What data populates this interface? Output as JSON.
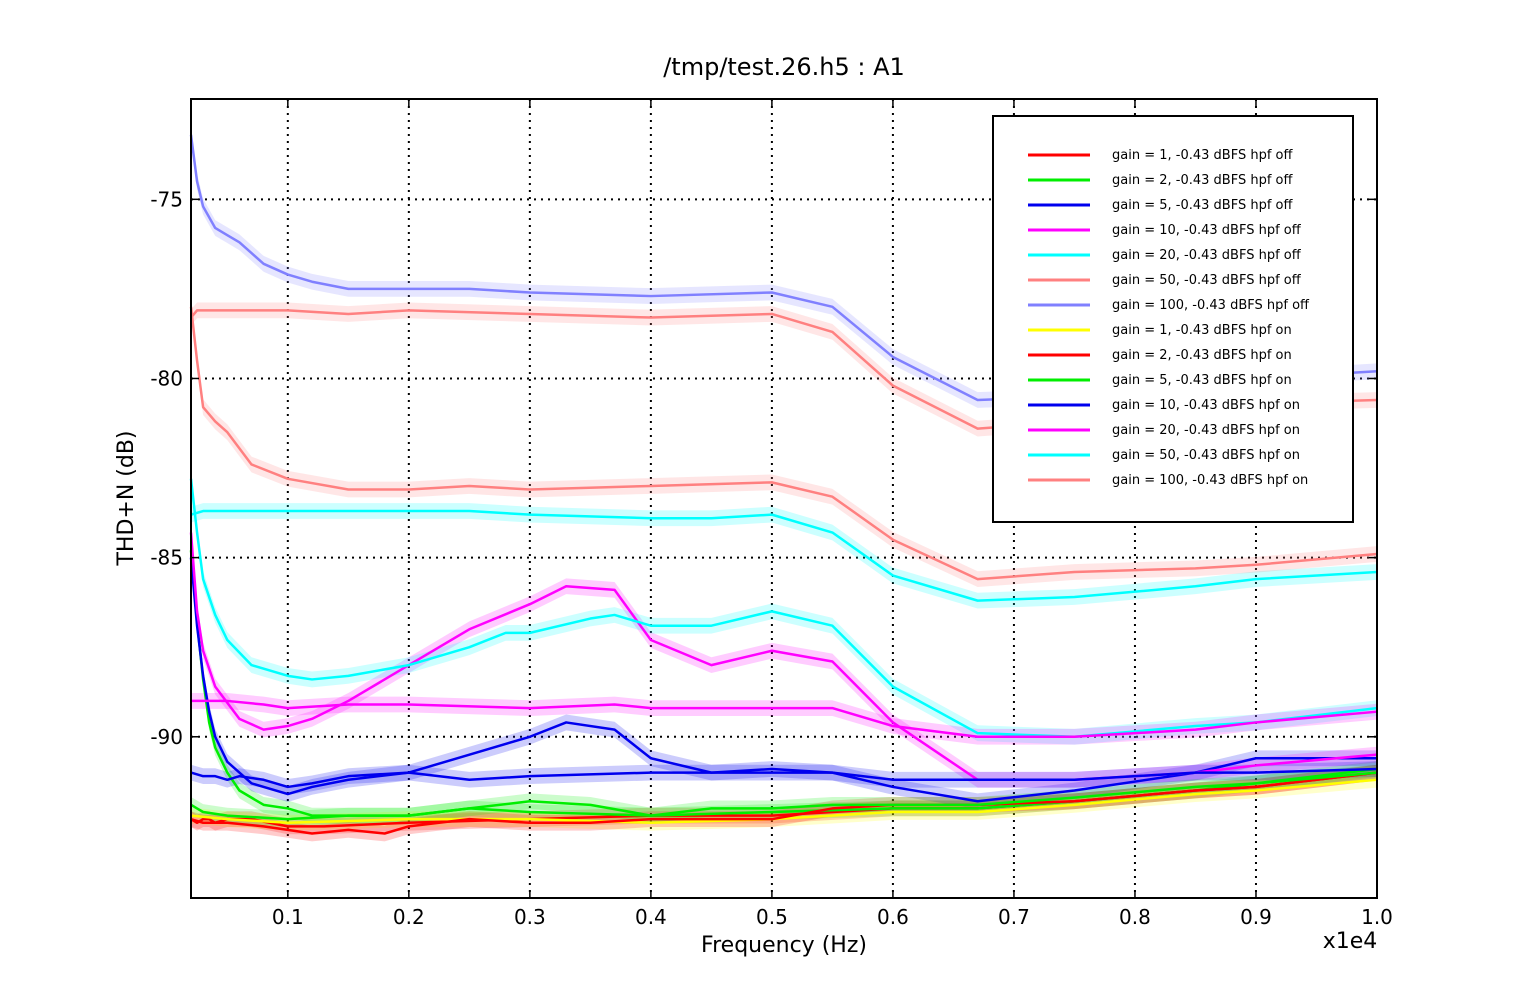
{
  "chart_data": {
    "type": "line",
    "title": "/tmp/test.26.h5 : A1",
    "xlabel": "Frequency (Hz)",
    "ylabel": "THD+N (dB)",
    "x_multiplier_label": "x1e4",
    "xlim": [
      0.02,
      1.0
    ],
    "ylim": [
      -94.5,
      -72.2
    ],
    "grid": "dotted",
    "legend_position": "top-right",
    "xticks": [
      0.1,
      0.2,
      0.3,
      0.4,
      0.5,
      0.6,
      0.7,
      0.8,
      0.9,
      1.0
    ],
    "xtick_labels": [
      "0.1",
      "0.2",
      "0.3",
      "0.4",
      "0.5",
      "0.6",
      "0.7",
      "0.8",
      "0.9",
      "1.0"
    ],
    "yticks": [
      -75,
      -80,
      -85,
      -90
    ],
    "ytick_labels": [
      "-75",
      "-80",
      "-85",
      "-90"
    ],
    "series": [
      {
        "name": "gain = 1, -0.43 dBFS  hpf off",
        "color": "#ff0000",
        "points": [
          [
            0.02,
            -92.3
          ],
          [
            0.025,
            -92.4
          ],
          [
            0.03,
            -92.3
          ],
          [
            0.035,
            -92.3
          ],
          [
            0.04,
            -92.4
          ],
          [
            0.05,
            -92.3
          ],
          [
            0.07,
            -92.3
          ],
          [
            0.1,
            -92.5
          ],
          [
            0.13,
            -92.5
          ],
          [
            0.2,
            -92.4
          ],
          [
            0.3,
            -92.3
          ],
          [
            0.4,
            -92.2
          ],
          [
            0.5,
            -92.2
          ],
          [
            0.6,
            -92.0
          ],
          [
            0.67,
            -92.0
          ],
          [
            0.75,
            -91.8
          ],
          [
            0.85,
            -91.5
          ],
          [
            0.9,
            -91.4
          ],
          [
            1.0,
            -91.0
          ]
        ]
      },
      {
        "name": "gain = 2, -0.43 dBFS  hpf off",
        "color": "#00ee00",
        "points": [
          [
            0.02,
            -84.8
          ],
          [
            0.025,
            -86.8
          ],
          [
            0.03,
            -88.4
          ],
          [
            0.035,
            -89.6
          ],
          [
            0.04,
            -90.3
          ],
          [
            0.05,
            -91.0
          ],
          [
            0.06,
            -91.5
          ],
          [
            0.08,
            -91.9
          ],
          [
            0.1,
            -92.0
          ],
          [
            0.12,
            -92.2
          ],
          [
            0.2,
            -92.2
          ],
          [
            0.25,
            -92.0
          ],
          [
            0.3,
            -92.1
          ],
          [
            0.4,
            -92.2
          ],
          [
            0.5,
            -92.1
          ],
          [
            0.6,
            -92.0
          ],
          [
            0.67,
            -92.0
          ],
          [
            0.75,
            -91.8
          ],
          [
            0.85,
            -91.5
          ],
          [
            0.9,
            -91.3
          ],
          [
            1.0,
            -90.9
          ]
        ]
      },
      {
        "name": "gain = 5, -0.43 dBFS  hpf off",
        "color": "#0000ee",
        "points": [
          [
            0.02,
            -85.0
          ],
          [
            0.025,
            -86.9
          ],
          [
            0.03,
            -88.3
          ],
          [
            0.035,
            -89.3
          ],
          [
            0.04,
            -90.0
          ],
          [
            0.05,
            -90.7
          ],
          [
            0.07,
            -91.3
          ],
          [
            0.1,
            -91.6
          ],
          [
            0.12,
            -91.4
          ],
          [
            0.15,
            -91.2
          ],
          [
            0.2,
            -91.0
          ],
          [
            0.25,
            -90.5
          ],
          [
            0.3,
            -90.0
          ],
          [
            0.33,
            -89.6
          ],
          [
            0.37,
            -89.8
          ],
          [
            0.4,
            -90.6
          ],
          [
            0.45,
            -91.0
          ],
          [
            0.5,
            -90.9
          ],
          [
            0.55,
            -91.0
          ],
          [
            0.6,
            -91.4
          ],
          [
            0.67,
            -91.8
          ],
          [
            0.75,
            -91.5
          ],
          [
            0.85,
            -91.0
          ],
          [
            0.9,
            -90.6
          ],
          [
            1.0,
            -90.6
          ]
        ]
      },
      {
        "name": "gain = 10, -0.43 dBFS  hpf off",
        "color": "#ff00ff",
        "points": [
          [
            0.02,
            -84.3
          ],
          [
            0.025,
            -86.5
          ],
          [
            0.03,
            -87.6
          ],
          [
            0.04,
            -88.6
          ],
          [
            0.06,
            -89.5
          ],
          [
            0.08,
            -89.8
          ],
          [
            0.1,
            -89.7
          ],
          [
            0.12,
            -89.5
          ],
          [
            0.15,
            -89.0
          ],
          [
            0.2,
            -88.0
          ],
          [
            0.25,
            -87.0
          ],
          [
            0.3,
            -86.3
          ],
          [
            0.33,
            -85.8
          ],
          [
            0.37,
            -85.9
          ],
          [
            0.4,
            -87.3
          ],
          [
            0.45,
            -88.0
          ],
          [
            0.5,
            -87.6
          ],
          [
            0.55,
            -87.9
          ],
          [
            0.6,
            -89.6
          ],
          [
            0.67,
            -91.2
          ],
          [
            0.75,
            -91.2
          ],
          [
            0.85,
            -91.0
          ],
          [
            0.9,
            -90.8
          ],
          [
            1.0,
            -90.5
          ]
        ]
      },
      {
        "name": "gain = 20, -0.43 dBFS  hpf off",
        "color": "#00ffff",
        "points": [
          [
            0.02,
            -82.8
          ],
          [
            0.025,
            -84.3
          ],
          [
            0.03,
            -85.6
          ],
          [
            0.04,
            -86.6
          ],
          [
            0.05,
            -87.3
          ],
          [
            0.07,
            -88.0
          ],
          [
            0.1,
            -88.3
          ],
          [
            0.12,
            -88.4
          ],
          [
            0.15,
            -88.3
          ],
          [
            0.2,
            -88.0
          ],
          [
            0.25,
            -87.5
          ],
          [
            0.28,
            -87.1
          ],
          [
            0.3,
            -87.1
          ],
          [
            0.35,
            -86.7
          ],
          [
            0.37,
            -86.6
          ],
          [
            0.4,
            -86.9
          ],
          [
            0.45,
            -86.9
          ],
          [
            0.5,
            -86.5
          ],
          [
            0.55,
            -86.9
          ],
          [
            0.6,
            -88.6
          ],
          [
            0.67,
            -89.9
          ],
          [
            0.75,
            -90.0
          ],
          [
            0.85,
            -89.7
          ],
          [
            0.9,
            -89.6
          ],
          [
            1.0,
            -89.2
          ]
        ]
      },
      {
        "name": "gain = 50, -0.43 dBFS  hpf off",
        "color": "#ff8080",
        "points": [
          [
            0.02,
            -78.3
          ],
          [
            0.025,
            -78.1
          ],
          [
            0.03,
            -78.1
          ],
          [
            0.05,
            -78.1
          ],
          [
            0.1,
            -78.1
          ],
          [
            0.15,
            -78.2
          ],
          [
            0.2,
            -78.1
          ],
          [
            0.3,
            -78.2
          ],
          [
            0.4,
            -78.3
          ],
          [
            0.5,
            -78.2
          ],
          [
            0.55,
            -78.7
          ],
          [
            0.6,
            -80.2
          ],
          [
            0.67,
            -81.4
          ],
          [
            0.75,
            -81.2
          ],
          [
            0.85,
            -80.9
          ],
          [
            0.9,
            -80.7
          ],
          [
            1.0,
            -80.6
          ]
        ]
      },
      {
        "name": "gain = 100, -0.43 dBFS  hpf off",
        "color": "#8080ff",
        "points": [
          [
            0.02,
            -73.2
          ],
          [
            0.025,
            -74.5
          ],
          [
            0.03,
            -75.2
          ],
          [
            0.04,
            -75.8
          ],
          [
            0.05,
            -76.0
          ],
          [
            0.06,
            -76.2
          ],
          [
            0.08,
            -76.8
          ],
          [
            0.1,
            -77.1
          ],
          [
            0.12,
            -77.3
          ],
          [
            0.15,
            -77.5
          ],
          [
            0.2,
            -77.5
          ],
          [
            0.25,
            -77.5
          ],
          [
            0.3,
            -77.6
          ],
          [
            0.4,
            -77.7
          ],
          [
            0.5,
            -77.6
          ],
          [
            0.55,
            -78.0
          ],
          [
            0.6,
            -79.4
          ],
          [
            0.67,
            -80.6
          ],
          [
            0.75,
            -80.5
          ],
          [
            0.85,
            -80.2
          ],
          [
            0.9,
            -80.0
          ],
          [
            1.0,
            -79.8
          ]
        ]
      },
      {
        "name": "gain = 1, -0.43 dBFS  hpf on",
        "color": "#ffff00",
        "points": [
          [
            0.02,
            -92.2
          ],
          [
            0.05,
            -92.3
          ],
          [
            0.1,
            -92.4
          ],
          [
            0.2,
            -92.3
          ],
          [
            0.3,
            -92.3
          ],
          [
            0.4,
            -92.4
          ],
          [
            0.5,
            -92.3
          ],
          [
            0.6,
            -92.1
          ],
          [
            0.67,
            -92.1
          ],
          [
            0.75,
            -91.9
          ],
          [
            0.85,
            -91.6
          ],
          [
            0.9,
            -91.5
          ],
          [
            1.0,
            -91.2
          ]
        ]
      },
      {
        "name": "gain = 2, -0.43 dBFS  hpf on",
        "color": "#ff0000",
        "points": [
          [
            0.02,
            -92.3
          ],
          [
            0.03,
            -92.4
          ],
          [
            0.05,
            -92.4
          ],
          [
            0.08,
            -92.5
          ],
          [
            0.1,
            -92.6
          ],
          [
            0.12,
            -92.7
          ],
          [
            0.15,
            -92.6
          ],
          [
            0.18,
            -92.7
          ],
          [
            0.2,
            -92.5
          ],
          [
            0.25,
            -92.3
          ],
          [
            0.3,
            -92.4
          ],
          [
            0.35,
            -92.4
          ],
          [
            0.4,
            -92.3
          ],
          [
            0.45,
            -92.3
          ],
          [
            0.5,
            -92.3
          ],
          [
            0.55,
            -92.0
          ],
          [
            0.6,
            -91.9
          ],
          [
            0.67,
            -91.9
          ],
          [
            0.75,
            -91.8
          ],
          [
            0.85,
            -91.5
          ],
          [
            0.9,
            -91.4
          ],
          [
            1.0,
            -91.0
          ]
        ]
      },
      {
        "name": "gain = 5, -0.43 dBFS  hpf on",
        "color": "#00ee00",
        "points": [
          [
            0.02,
            -91.9
          ],
          [
            0.025,
            -92.0
          ],
          [
            0.03,
            -92.1
          ],
          [
            0.05,
            -92.2
          ],
          [
            0.1,
            -92.3
          ],
          [
            0.15,
            -92.2
          ],
          [
            0.2,
            -92.2
          ],
          [
            0.25,
            -92.0
          ],
          [
            0.3,
            -91.8
          ],
          [
            0.35,
            -91.9
          ],
          [
            0.4,
            -92.2
          ],
          [
            0.45,
            -92.0
          ],
          [
            0.5,
            -92.0
          ],
          [
            0.55,
            -91.9
          ],
          [
            0.6,
            -91.9
          ],
          [
            0.67,
            -91.9
          ],
          [
            0.75,
            -91.7
          ],
          [
            0.85,
            -91.4
          ],
          [
            0.9,
            -91.3
          ],
          [
            1.0,
            -91.0
          ]
        ]
      },
      {
        "name": "gain = 10, -0.43 dBFS  hpf on",
        "color": "#0000ee",
        "points": [
          [
            0.02,
            -91.0
          ],
          [
            0.03,
            -91.1
          ],
          [
            0.04,
            -91.1
          ],
          [
            0.05,
            -91.2
          ],
          [
            0.06,
            -91.1
          ],
          [
            0.08,
            -91.2
          ],
          [
            0.1,
            -91.4
          ],
          [
            0.12,
            -91.3
          ],
          [
            0.15,
            -91.1
          ],
          [
            0.2,
            -91.0
          ],
          [
            0.25,
            -91.2
          ],
          [
            0.3,
            -91.1
          ],
          [
            0.4,
            -91.0
          ],
          [
            0.5,
            -91.0
          ],
          [
            0.55,
            -91.0
          ],
          [
            0.6,
            -91.2
          ],
          [
            0.67,
            -91.2
          ],
          [
            0.75,
            -91.2
          ],
          [
            0.85,
            -91.0
          ],
          [
            0.9,
            -91.0
          ],
          [
            1.0,
            -90.9
          ]
        ]
      },
      {
        "name": "gain = 20, -0.43 dBFS  hpf on",
        "color": "#ff00ff",
        "points": [
          [
            0.02,
            -89.0
          ],
          [
            0.03,
            -89.0
          ],
          [
            0.05,
            -89.0
          ],
          [
            0.08,
            -89.1
          ],
          [
            0.1,
            -89.2
          ],
          [
            0.15,
            -89.1
          ],
          [
            0.2,
            -89.1
          ],
          [
            0.3,
            -89.2
          ],
          [
            0.37,
            -89.1
          ],
          [
            0.4,
            -89.2
          ],
          [
            0.5,
            -89.2
          ],
          [
            0.55,
            -89.2
          ],
          [
            0.6,
            -89.7
          ],
          [
            0.67,
            -90.0
          ],
          [
            0.75,
            -90.0
          ],
          [
            0.85,
            -89.8
          ],
          [
            0.9,
            -89.6
          ],
          [
            1.0,
            -89.3
          ]
        ]
      },
      {
        "name": "gain = 50, -0.43 dBFS  hpf on",
        "color": "#00ffff",
        "points": [
          [
            0.02,
            -83.8
          ],
          [
            0.03,
            -83.7
          ],
          [
            0.05,
            -83.7
          ],
          [
            0.1,
            -83.7
          ],
          [
            0.15,
            -83.7
          ],
          [
            0.2,
            -83.7
          ],
          [
            0.25,
            -83.7
          ],
          [
            0.3,
            -83.8
          ],
          [
            0.4,
            -83.9
          ],
          [
            0.45,
            -83.9
          ],
          [
            0.5,
            -83.8
          ],
          [
            0.55,
            -84.3
          ],
          [
            0.6,
            -85.5
          ],
          [
            0.67,
            -86.2
          ],
          [
            0.75,
            -86.1
          ],
          [
            0.85,
            -85.8
          ],
          [
            0.9,
            -85.6
          ],
          [
            1.0,
            -85.4
          ]
        ]
      },
      {
        "name": "gain = 100, -0.43 dBFS  hpf on",
        "color": "#ff8080",
        "points": [
          [
            0.02,
            -78.0
          ],
          [
            0.025,
            -79.5
          ],
          [
            0.03,
            -80.8
          ],
          [
            0.04,
            -81.2
          ],
          [
            0.05,
            -81.5
          ],
          [
            0.07,
            -82.4
          ],
          [
            0.1,
            -82.8
          ],
          [
            0.15,
            -83.1
          ],
          [
            0.2,
            -83.1
          ],
          [
            0.25,
            -83.0
          ],
          [
            0.3,
            -83.1
          ],
          [
            0.4,
            -83.0
          ],
          [
            0.5,
            -82.9
          ],
          [
            0.55,
            -83.3
          ],
          [
            0.6,
            -84.5
          ],
          [
            0.67,
            -85.6
          ],
          [
            0.75,
            -85.4
          ],
          [
            0.85,
            -85.3
          ],
          [
            0.9,
            -85.2
          ],
          [
            1.0,
            -84.9
          ]
        ]
      }
    ]
  }
}
